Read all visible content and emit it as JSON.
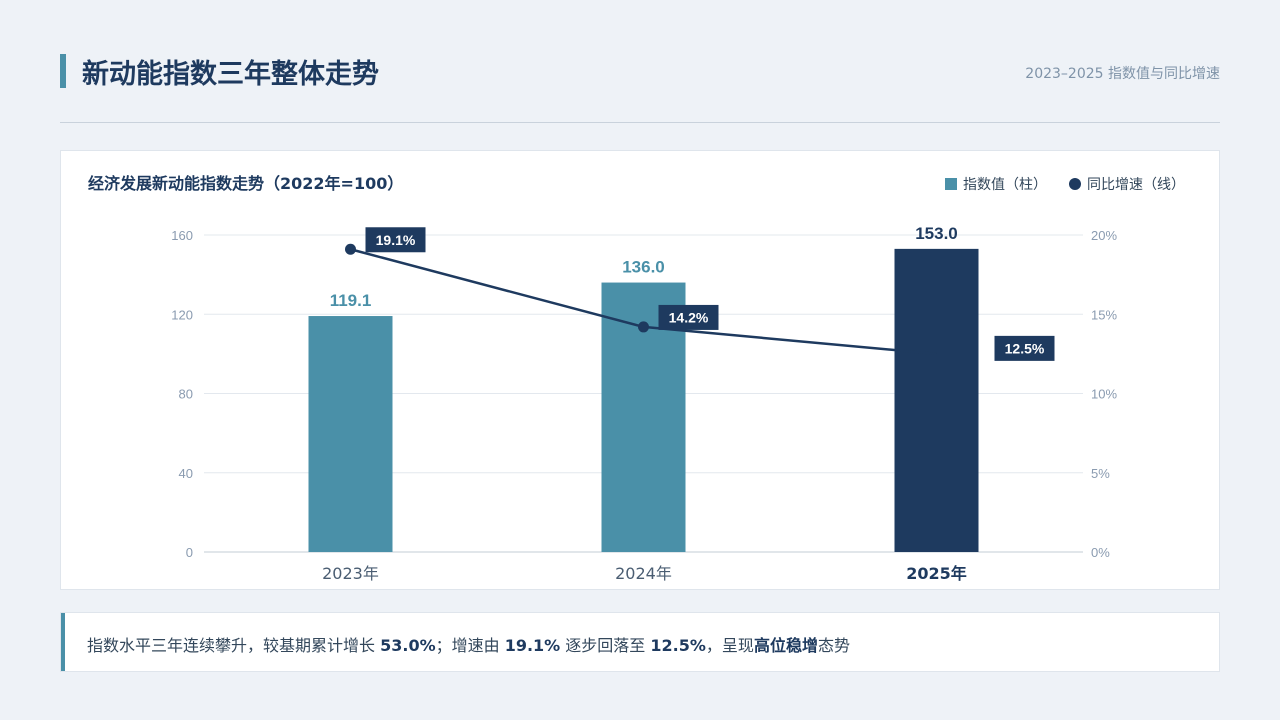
{
  "header": {
    "title": "新动能指数三年整体走势",
    "subtitle": "2023–2025 指数值与同比增速"
  },
  "chart_data": {
    "type": "bar",
    "title": "经济发展新动能指数走势（2022年=100）",
    "categories": [
      "2023年",
      "2024年",
      "2025年"
    ],
    "highlight_category": "2025年",
    "series": [
      {
        "name": "指数值（柱）",
        "type": "bar",
        "axis": "left",
        "values": [
          119.1,
          136.0,
          153.0
        ],
        "labels": [
          "119.1",
          "136.0",
          "153.0"
        ],
        "colors": [
          "#4a90a8",
          "#4a90a8",
          "#1e3a5f"
        ]
      },
      {
        "name": "同比增速（线）",
        "type": "line",
        "axis": "right",
        "values": [
          19.1,
          14.2,
          12.5
        ],
        "labels": [
          "19.1%",
          "14.2%",
          "12.5%"
        ],
        "color": "#1e3a5f"
      }
    ],
    "y_left": {
      "min": 0,
      "max": 160,
      "ticks": [
        0,
        40,
        80,
        120,
        160
      ],
      "tick_labels": [
        "0",
        "40",
        "80",
        "120",
        "160"
      ]
    },
    "y_right": {
      "min": 0,
      "max": 20,
      "ticks": [
        0,
        5,
        10,
        15,
        20
      ],
      "tick_labels": [
        "0%",
        "5%",
        "10%",
        "15%",
        "20%"
      ]
    },
    "grid": true,
    "legend_position": "top-right"
  },
  "summary": {
    "parts": [
      {
        "text": "指数水平三年连续攀升，较基期累计增长 ",
        "bold": false
      },
      {
        "text": "53.0%",
        "bold": true
      },
      {
        "text": "；增速由 ",
        "bold": false
      },
      {
        "text": "19.1%",
        "bold": true
      },
      {
        "text": " 逐步回落至 ",
        "bold": false
      },
      {
        "text": "12.5%",
        "bold": true
      },
      {
        "text": "，呈现",
        "bold": false
      },
      {
        "text": "高位稳增",
        "bold": true
      },
      {
        "text": "态势",
        "bold": false
      }
    ]
  },
  "colors": {
    "background": "#eef2f7",
    "accent": "#4a90a8",
    "navy": "#1e3a5f"
  }
}
